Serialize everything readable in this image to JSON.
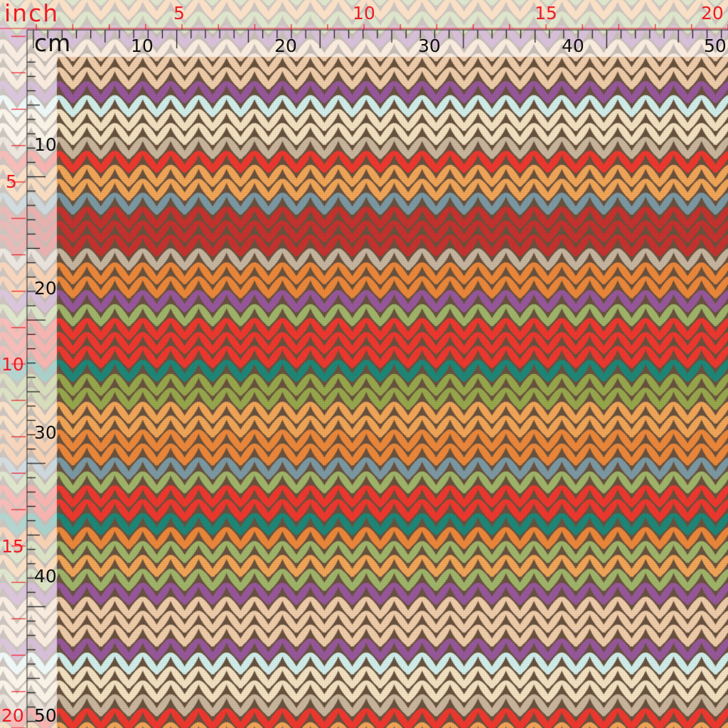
{
  "ruler": {
    "inch_unit": "inch",
    "cm_unit": "cm",
    "top_inch_labels": [
      "5",
      "10",
      "15",
      "20"
    ],
    "top_cm_labels": [
      "10",
      "20",
      "30",
      "40",
      "50"
    ],
    "left_inch_labels": [
      "5",
      "10",
      "15",
      "20"
    ],
    "left_cm_labels": [
      "10",
      "20",
      "30",
      "40",
      "50"
    ],
    "inch_color": "#ee1c25",
    "cm_color": "#111111"
  },
  "fabric": {
    "pattern": "knit-stitch stripes",
    "background": "#6b5440",
    "stripe_colors": [
      "#f08a3c",
      "#a3b86c",
      "#f5a85a",
      "#a3b86c",
      "#9a5a9e",
      "#f3d0ad",
      "#f3d0ad",
      "#f3d0ad",
      "#9a5a9e",
      "#d4f2ee",
      "#f7e5c4",
      "#f7e5c4",
      "#cdb9a0",
      "#f23a30",
      "#f5a85a",
      "#f5a85a",
      "#7e9ca6",
      "#c83430",
      "#c83430",
      "#c83430",
      "#c9b9a3",
      "#f08a3c",
      "#f08a3c",
      "#9a5a9e",
      "#a3b86c",
      "#f23a30",
      "#f23a30",
      "#f23a30",
      "#1f8a7a",
      "#9aaa4e",
      "#9aaa4e",
      "#f5a85a",
      "#f5a85a",
      "#f08a3c",
      "#f08a3c",
      "#7e9ca6",
      "#a3b86c",
      "#f23a30",
      "#f23a30",
      "#1f8a7a"
    ]
  }
}
